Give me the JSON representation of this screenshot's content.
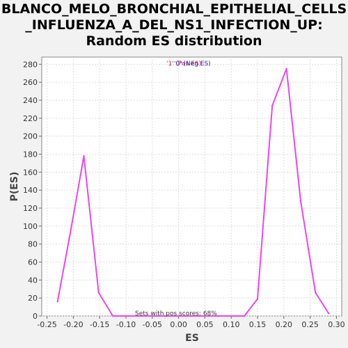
{
  "chart_data": {
    "type": "line",
    "title_lines": [
      "BLANCO_MELO_BRONCHIAL_EPITHELIAL_CELLS",
      "_INFLUENZA_A_DEL_NS1_INFECTION_UP:",
      "Random ES distribution"
    ],
    "xlabel": "ES",
    "ylabel": "P(ES)",
    "xlim": [
      -0.26,
      0.31
    ],
    "ylim": [
      0,
      288
    ],
    "xticks": [
      -0.25,
      -0.2,
      -0.15,
      -0.1,
      -0.05,
      0.0,
      0.05,
      0.1,
      0.15,
      0.2,
      0.25,
      0.3
    ],
    "xtick_labels": [
      "-0.25",
      "-0.20",
      "-0.15",
      "-0.10",
      "-0.05",
      "0.00",
      "0.05",
      "0.10",
      "0.15",
      "0.20",
      "0.25",
      "0.30"
    ],
    "yticks": [
      0,
      20,
      40,
      60,
      80,
      100,
      120,
      140,
      160,
      180,
      200,
      220,
      240,
      260,
      280
    ],
    "grid": true,
    "series": [
      {
        "color": "#ee44ee",
        "x": [
          -0.23,
          -0.205,
          -0.18,
          -0.152,
          -0.125,
          -0.1,
          -0.075,
          -0.05,
          -0.025,
          0.0,
          0.025,
          0.05,
          0.075,
          0.1,
          0.125,
          0.15,
          0.178,
          0.205,
          0.232,
          0.26,
          0.285
        ],
        "y": [
          16,
          95,
          178,
          26,
          0,
          0,
          0,
          0,
          0,
          0,
          0,
          0,
          0,
          0,
          0,
          19,
          234,
          275,
          128,
          26,
          3
        ]
      }
    ],
    "legend": {
      "position": "top-center",
      "items": [
        {
          "text": "'1' (Pos ES)",
          "color": "#dd2222"
        },
        {
          "text": "'0' (Neg ES)",
          "color": "#2222cc"
        }
      ]
    },
    "annotation": "Sets with pos scores: 68%"
  }
}
